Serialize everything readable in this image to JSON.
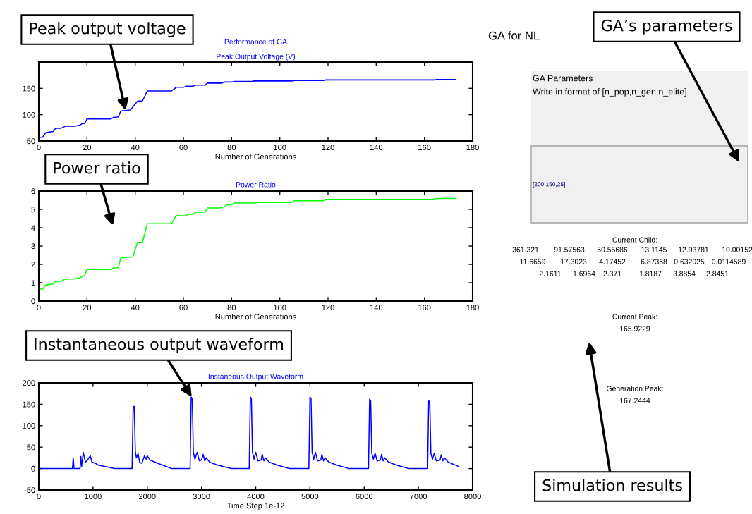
{
  "chart_data": [
    {
      "type": "line",
      "title": "Performance of GA",
      "subtitle": "Peak Output Voltage (V)",
      "xlabel": "Number of Generations",
      "xlim": [
        0,
        180
      ],
      "xticks": [
        0,
        20,
        40,
        60,
        80,
        100,
        120,
        140,
        160,
        180
      ],
      "ylim": [
        50,
        200
      ],
      "yticks": [
        50,
        100,
        150
      ],
      "series": [
        {
          "color": "#0000ff",
          "x": [
            0.5,
            1.5,
            3,
            6,
            7,
            9,
            11,
            15,
            17,
            18,
            19,
            20,
            30,
            31,
            33,
            34,
            36,
            38,
            41,
            43,
            45,
            55,
            57,
            60,
            61,
            64,
            65,
            69,
            70,
            76,
            77,
            80,
            81,
            88,
            89,
            105,
            106,
            118,
            119,
            164,
            165,
            173
          ],
          "values": [
            57,
            57,
            66,
            68,
            74,
            74,
            78,
            78,
            80,
            83,
            83,
            92,
            92,
            95,
            96,
            107,
            108,
            109,
            126,
            126,
            145,
            145,
            152,
            152,
            154,
            154,
            156,
            156,
            160,
            160,
            162,
            162,
            163,
            163,
            164,
            164,
            165,
            165,
            166,
            166,
            167,
            167
          ]
        }
      ],
      "annotations": [
        {
          "text": "Peak output voltage",
          "x": 36,
          "y": 108
        }
      ]
    },
    {
      "type": "line",
      "title": "Power Ratio",
      "xlabel": "Number of Generations",
      "xlim": [
        0,
        180
      ],
      "xticks": [
        0,
        20,
        40,
        60,
        80,
        100,
        120,
        140,
        160,
        180
      ],
      "ylim": [
        0,
        6
      ],
      "yticks": [
        0,
        1,
        2,
        3,
        4,
        5,
        6
      ],
      "series": [
        {
          "color": "#00ff00",
          "x": [
            0.5,
            1.5,
            3,
            6,
            7,
            9,
            11,
            15,
            17,
            19,
            20,
            30,
            31,
            33,
            34,
            36,
            39,
            41,
            43,
            45,
            55,
            57,
            61,
            62,
            64,
            65,
            69,
            70,
            75,
            77,
            78,
            80,
            81,
            90,
            91,
            105,
            106,
            118,
            119,
            164,
            165,
            173
          ],
          "values": [
            0.65,
            0.65,
            0.88,
            0.93,
            1.08,
            1.08,
            1.2,
            1.2,
            1.28,
            1.4,
            1.72,
            1.72,
            1.8,
            1.83,
            2.35,
            2.38,
            2.4,
            3.2,
            3.2,
            4.22,
            4.22,
            4.65,
            4.65,
            4.73,
            4.73,
            4.85,
            4.85,
            5.08,
            5.08,
            5.13,
            5.25,
            5.25,
            5.35,
            5.35,
            5.38,
            5.38,
            5.47,
            5.47,
            5.55,
            5.55,
            5.6,
            5.6
          ]
        }
      ],
      "annotations": [
        "Power ratio"
      ]
    },
    {
      "type": "line",
      "title": "Instaneous Output Waveform",
      "xlabel": "Time Step 1e-12",
      "xlim": [
        0,
        8000
      ],
      "xticks": [
        0,
        1000,
        2000,
        3000,
        4000,
        5000,
        6000,
        7000,
        8000
      ],
      "ylim": [
        -50,
        200
      ],
      "yticks": [
        -50,
        0,
        50,
        100,
        150,
        200
      ],
      "series": [
        {
          "color": "#0000ff",
          "x": [
            0,
            480,
            620,
            635,
            650,
            760,
            775,
            790,
            820,
            860,
            900,
            950,
            980,
            1050,
            1100,
            1400,
            1720,
            1740,
            1760,
            1780,
            1800,
            1830,
            1860,
            1900,
            1950,
            1980,
            2000,
            2050,
            2200,
            2450,
            2790,
            2810,
            2830,
            2850,
            2880,
            2920,
            2960,
            3000,
            3030,
            3060,
            3090,
            3150,
            3300,
            3550,
            3880,
            3900,
            3920,
            3940,
            3970,
            4000,
            4040,
            4100,
            4120,
            4150,
            4180,
            4250,
            4400,
            4620,
            4980,
            5000,
            5020,
            5040,
            5070,
            5100,
            5140,
            5200,
            5220,
            5250,
            5280,
            5350,
            5500,
            5720,
            6080,
            6100,
            6120,
            6140,
            6170,
            6200,
            6240,
            6300,
            6320,
            6350,
            6380,
            6450,
            6600,
            6820,
            7170,
            7190,
            7210,
            7230,
            7260,
            7290,
            7330,
            7400,
            7420,
            7450,
            7480,
            7550,
            7740
          ],
          "values": [
            0,
            0,
            0,
            25,
            0,
            0,
            28,
            5,
            38,
            15,
            20,
            30,
            15,
            12,
            8,
            0,
            0,
            145,
            145,
            40,
            25,
            35,
            15,
            12,
            30,
            22,
            30,
            20,
            12,
            0,
            0,
            167,
            163,
            38,
            22,
            38,
            18,
            20,
            33,
            18,
            25,
            15,
            8,
            0,
            0,
            167,
            163,
            38,
            22,
            38,
            18,
            20,
            33,
            18,
            25,
            15,
            8,
            0,
            0,
            167,
            163,
            38,
            22,
            38,
            18,
            20,
            33,
            18,
            25,
            15,
            8,
            0,
            0,
            162,
            158,
            36,
            22,
            36,
            18,
            20,
            33,
            18,
            25,
            15,
            8,
            0,
            0,
            158,
            154,
            35,
            22,
            35,
            18,
            20,
            32,
            18,
            25,
            15,
            5
          ]
        }
      ],
      "annotations": [
        {
          "text": "Instantaneous output waveform",
          "x": 2820,
          "y": 167
        }
      ]
    },
    {
      "type": "other",
      "title": "GA for NL",
      "annotations": [
        "GA Parameters",
        "Write in format of [n_pop,n_gen,n_elite]",
        "[200,150,25]",
        "Current Child:",
        "361.321",
        "91.57563",
        "50.55686",
        "13.1145",
        "12.93781",
        "10.00152",
        "11.6659",
        "17.3023",
        "4.17452",
        "6.87368",
        "0.632025",
        "0.0114589",
        "2.1611",
        "1.6964",
        "2.371",
        "1.8187",
        "3.8854",
        "2.8451",
        "Current Peak:",
        "165.9229",
        "Generation Peak:",
        "167.2444",
        "GA’s parameters",
        "Simulation results"
      ]
    }
  ]
}
